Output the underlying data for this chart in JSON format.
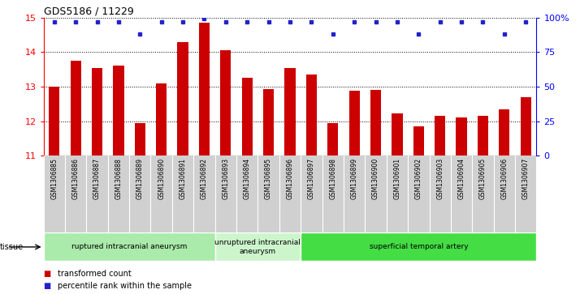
{
  "title": "GDS5186 / 11229",
  "samples": [
    "GSM1306885",
    "GSM1306886",
    "GSM1306887",
    "GSM1306888",
    "GSM1306889",
    "GSM1306890",
    "GSM1306891",
    "GSM1306892",
    "GSM1306893",
    "GSM1306894",
    "GSM1306895",
    "GSM1306896",
    "GSM1306897",
    "GSM1306898",
    "GSM1306899",
    "GSM1306900",
    "GSM1306901",
    "GSM1306902",
    "GSM1306903",
    "GSM1306904",
    "GSM1306905",
    "GSM1306906",
    "GSM1306907"
  ],
  "bar_values": [
    13.0,
    13.75,
    13.55,
    13.6,
    11.95,
    13.1,
    14.3,
    14.85,
    14.05,
    13.25,
    12.92,
    13.55,
    13.35,
    11.95,
    12.88,
    12.9,
    12.22,
    11.85,
    12.15,
    12.1,
    12.15,
    12.35,
    12.7
  ],
  "dot_values": [
    97,
    97,
    97,
    97,
    88,
    97,
    97,
    99,
    97,
    97,
    97,
    97,
    97,
    88,
    97,
    97,
    97,
    88,
    97,
    97,
    97,
    88,
    97
  ],
  "bar_color": "#cc0000",
  "dot_color": "#2222cc",
  "ylim_left": [
    11,
    15
  ],
  "yticks_left": [
    11,
    12,
    13,
    14,
    15
  ],
  "yticks_right": [
    0,
    25,
    50,
    75,
    100
  ],
  "groups": [
    {
      "label": "ruptured intracranial aneurysm",
      "start": 0,
      "end": 8,
      "color": "#aaeaaa"
    },
    {
      "label": "unruptured intracranial\naneurysm",
      "start": 8,
      "end": 12,
      "color": "#ccf5cc"
    },
    {
      "label": "superficial temporal artery",
      "start": 12,
      "end": 23,
      "color": "#44dd44"
    }
  ],
  "tissue_label": "tissue",
  "legend_bar_label": "transformed count",
  "legend_dot_label": "percentile rank within the sample",
  "plot_bg_color": "#ffffff",
  "xtick_bg_color": "#d0d0d0",
  "grid_color": "#000000"
}
